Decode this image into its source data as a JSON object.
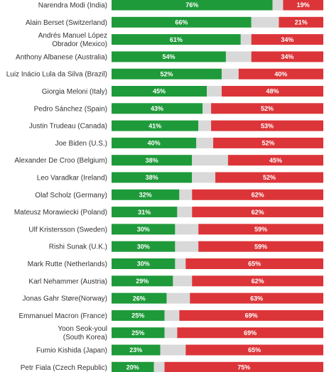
{
  "colors": {
    "approve": "#1f9a3a",
    "neutral": "#d9d9d9",
    "disapprove": "#dc3539"
  },
  "chart_data": {
    "type": "bar",
    "stacked": true,
    "orientation": "horizontal",
    "xlim": [
      0,
      100
    ],
    "series": [
      {
        "key": "approve"
      },
      {
        "key": "neutral"
      },
      {
        "key": "disapprove"
      }
    ],
    "rows": [
      {
        "label": [
          "Narendra Modi (India)"
        ],
        "approve": 76,
        "approve_text": "76%",
        "neutral": 5,
        "disapprove": 19,
        "disapprove_text": "19%"
      },
      {
        "label": [
          "Alain Berset (Switzerland)"
        ],
        "approve": 66,
        "approve_text": "66%",
        "neutral": 13,
        "disapprove": 21,
        "disapprove_text": "21%"
      },
      {
        "label": [
          "Andrés Manuel López",
          "Obrador (Mexico)"
        ],
        "approve": 61,
        "approve_text": "61%",
        "neutral": 5,
        "disapprove": 34,
        "disapprove_text": "34%"
      },
      {
        "label": [
          "Anthony Albanese (Australia)"
        ],
        "approve": 54,
        "approve_text": "54%",
        "neutral": 12,
        "disapprove": 34,
        "disapprove_text": "34%"
      },
      {
        "label": [
          "Luiz Inácio Lula da Silva (Brazil)"
        ],
        "approve": 52,
        "approve_text": "52%",
        "neutral": 8,
        "disapprove": 40,
        "disapprove_text": "40%"
      },
      {
        "label": [
          "Giorgia Meloni (Italy)"
        ],
        "approve": 45,
        "approve_text": "45%",
        "neutral": 7,
        "disapprove": 48,
        "disapprove_text": "48%"
      },
      {
        "label": [
          "Pedro Sánchez (Spain)"
        ],
        "approve": 43,
        "approve_text": "43%",
        "neutral": 4,
        "disapprove": 52,
        "disapprove_text": "52%"
      },
      {
        "label": [
          "Justin Trudeau (Canada)"
        ],
        "approve": 41,
        "approve_text": "41%",
        "neutral": 6,
        "disapprove": 53,
        "disapprove_text": "53%"
      },
      {
        "label": [
          "Joe Biden (U.S.)"
        ],
        "approve": 40,
        "approve_text": "40%",
        "neutral": 8,
        "disapprove": 52,
        "disapprove_text": "52%"
      },
      {
        "label": [
          "Alexander De Croo (Belgium)"
        ],
        "approve": 38,
        "approve_text": "38%",
        "neutral": 17,
        "disapprove": 45,
        "disapprove_text": "45%"
      },
      {
        "label": [
          "Leo Varadkar (Ireland)"
        ],
        "approve": 38,
        "approve_text": "38%",
        "neutral": 11,
        "disapprove": 52,
        "disapprove_text": "52%"
      },
      {
        "label": [
          "Olaf Scholz (Germany)"
        ],
        "approve": 32,
        "approve_text": "32%",
        "neutral": 6,
        "disapprove": 62,
        "disapprove_text": "62%"
      },
      {
        "label": [
          "Mateusz Morawiecki (Poland)"
        ],
        "approve": 31,
        "approve_text": "31%",
        "neutral": 7,
        "disapprove": 62,
        "disapprove_text": "62%"
      },
      {
        "label": [
          "Ulf Kristersson (Sweden)"
        ],
        "approve": 30,
        "approve_text": "30%",
        "neutral": 11,
        "disapprove": 59,
        "disapprove_text": "59%"
      },
      {
        "label": [
          "Rishi Sunak (U.K.)"
        ],
        "approve": 30,
        "approve_text": "30%",
        "neutral": 11,
        "disapprove": 59,
        "disapprove_text": "59%"
      },
      {
        "label": [
          "Mark Rutte (Netherlands)"
        ],
        "approve": 30,
        "approve_text": "30%",
        "neutral": 5,
        "disapprove": 65,
        "disapprove_text": "65%"
      },
      {
        "label": [
          "Karl Nehammer (Austria)"
        ],
        "approve": 29,
        "approve_text": "29%",
        "neutral": 9,
        "disapprove": 62,
        "disapprove_text": "62%"
      },
      {
        "label": [
          "Jonas Gahr Støre(Norway)"
        ],
        "approve": 26,
        "approve_text": "26%",
        "neutral": 11,
        "disapprove": 63,
        "disapprove_text": "63%"
      },
      {
        "label": [
          "Emmanuel Macron (France)"
        ],
        "approve": 25,
        "approve_text": "25%",
        "neutral": 7,
        "disapprove": 69,
        "disapprove_text": "69%"
      },
      {
        "label": [
          "Yoon Seok-youl",
          "(South Korea)"
        ],
        "approve": 25,
        "approve_text": "25%",
        "neutral": 6,
        "disapprove": 69,
        "disapprove_text": "69%"
      },
      {
        "label": [
          "Fumio Kishida (Japan)"
        ],
        "approve": 23,
        "approve_text": "23%",
        "neutral": 12,
        "disapprove": 65,
        "disapprove_text": "65%"
      },
      {
        "label": [
          "Petr Fiala (Czech Republic)"
        ],
        "approve": 20,
        "approve_text": "20%",
        "neutral": 5,
        "disapprove": 75,
        "disapprove_text": "75%"
      }
    ]
  }
}
